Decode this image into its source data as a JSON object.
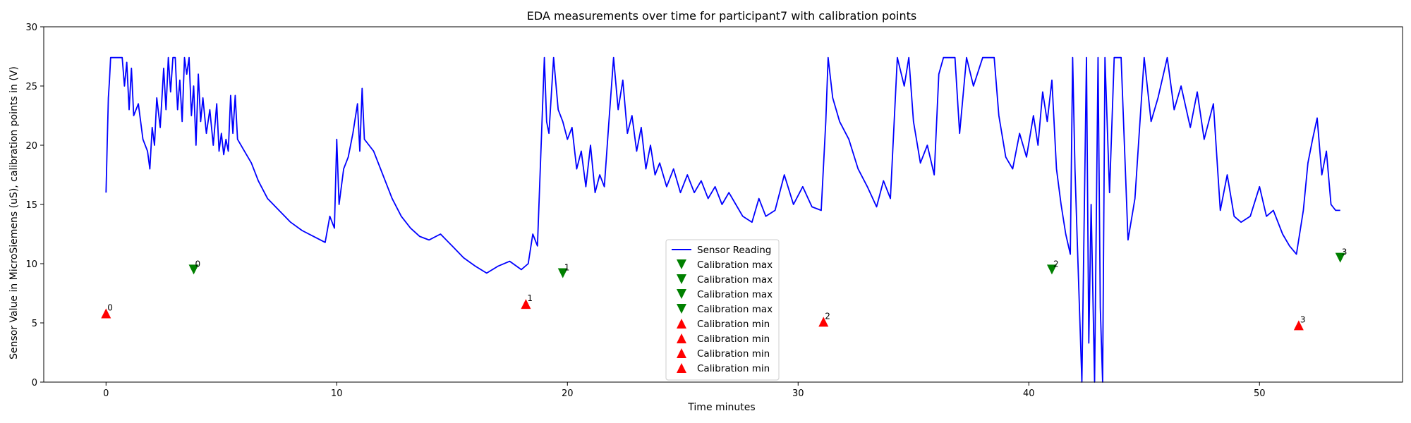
{
  "chart_data": {
    "type": "line",
    "title": "EDA measurements over time for participant7 with calibration points",
    "xlabel": "Time minutes",
    "ylabel": "Sensor Value in MicroSiemens (uS), calibration points in (V)",
    "xlim": [
      -2.7,
      56.2
    ],
    "ylim": [
      0,
      30
    ],
    "xticks": [
      0,
      10,
      20,
      30,
      40,
      50
    ],
    "yticks": [
      0,
      5,
      10,
      15,
      20,
      25,
      30
    ],
    "grid": false,
    "legend_position": "lower center",
    "series": [
      {
        "name": "Sensor Reading",
        "color": "#0000ff",
        "style": "line",
        "points": [
          [
            0,
            16.0
          ],
          [
            0.05,
            20.0
          ],
          [
            0.1,
            24.0
          ],
          [
            0.15,
            25.5
          ],
          [
            0.2,
            27.4
          ],
          [
            0.6,
            27.4
          ],
          [
            0.7,
            27.4
          ],
          [
            0.8,
            25.0
          ],
          [
            0.9,
            27.0
          ],
          [
            1.0,
            23.0
          ],
          [
            1.1,
            26.5
          ],
          [
            1.2,
            22.5
          ],
          [
            1.4,
            23.5
          ],
          [
            1.6,
            20.5
          ],
          [
            1.8,
            19.5
          ],
          [
            1.9,
            18.0
          ],
          [
            2.0,
            21.5
          ],
          [
            2.1,
            20.0
          ],
          [
            2.2,
            24.0
          ],
          [
            2.35,
            21.5
          ],
          [
            2.5,
            26.5
          ],
          [
            2.6,
            23.0
          ],
          [
            2.7,
            27.4
          ],
          [
            2.8,
            24.5
          ],
          [
            2.9,
            27.4
          ],
          [
            3.0,
            27.4
          ],
          [
            3.1,
            23.0
          ],
          [
            3.2,
            25.5
          ],
          [
            3.3,
            22.0
          ],
          [
            3.4,
            27.4
          ],
          [
            3.5,
            26.0
          ],
          [
            3.6,
            27.4
          ],
          [
            3.7,
            22.5
          ],
          [
            3.8,
            25.0
          ],
          [
            3.9,
            20.0
          ],
          [
            4.0,
            26.0
          ],
          [
            4.1,
            22.0
          ],
          [
            4.2,
            24.0
          ],
          [
            4.35,
            21.0
          ],
          [
            4.5,
            23.0
          ],
          [
            4.65,
            20.0
          ],
          [
            4.8,
            23.5
          ],
          [
            4.9,
            19.5
          ],
          [
            5.0,
            21.0
          ],
          [
            5.1,
            19.2
          ],
          [
            5.2,
            20.5
          ],
          [
            5.3,
            19.5
          ],
          [
            5.4,
            24.2
          ],
          [
            5.5,
            21.0
          ],
          [
            5.6,
            24.2
          ],
          [
            5.7,
            20.5
          ],
          [
            6.0,
            19.5
          ],
          [
            6.3,
            18.5
          ],
          [
            6.6,
            17.0
          ],
          [
            7.0,
            15.5
          ],
          [
            7.5,
            14.5
          ],
          [
            8.0,
            13.5
          ],
          [
            8.5,
            12.8
          ],
          [
            9.0,
            12.3
          ],
          [
            9.5,
            11.8
          ],
          [
            9.7,
            14.0
          ],
          [
            9.9,
            13.0
          ],
          [
            10.0,
            20.5
          ],
          [
            10.1,
            15.0
          ],
          [
            10.3,
            18.0
          ],
          [
            10.5,
            19.0
          ],
          [
            10.7,
            21.0
          ],
          [
            10.9,
            23.5
          ],
          [
            11.0,
            19.5
          ],
          [
            11.1,
            24.8
          ],
          [
            11.2,
            20.5
          ],
          [
            11.4,
            20.0
          ],
          [
            11.6,
            19.5
          ],
          [
            12.0,
            17.5
          ],
          [
            12.4,
            15.5
          ],
          [
            12.8,
            14.0
          ],
          [
            13.2,
            13.0
          ],
          [
            13.6,
            12.3
          ],
          [
            14.0,
            12.0
          ],
          [
            14.5,
            12.5
          ],
          [
            15.0,
            11.5
          ],
          [
            15.5,
            10.5
          ],
          [
            16.0,
            9.8
          ],
          [
            16.5,
            9.2
          ],
          [
            17.0,
            9.8
          ],
          [
            17.5,
            10.2
          ],
          [
            18.0,
            9.5
          ],
          [
            18.3,
            10.0
          ],
          [
            18.5,
            12.5
          ],
          [
            18.7,
            11.5
          ],
          [
            19.0,
            27.4
          ],
          [
            19.1,
            22.0
          ],
          [
            19.2,
            21.0
          ],
          [
            19.4,
            27.4
          ],
          [
            19.6,
            23.0
          ],
          [
            19.8,
            22.0
          ],
          [
            20.0,
            20.5
          ],
          [
            20.2,
            21.5
          ],
          [
            20.4,
            18.0
          ],
          [
            20.6,
            19.5
          ],
          [
            20.8,
            16.5
          ],
          [
            21.0,
            20.0
          ],
          [
            21.2,
            16.0
          ],
          [
            21.4,
            17.5
          ],
          [
            21.6,
            16.5
          ],
          [
            21.8,
            22.0
          ],
          [
            22.0,
            27.4
          ],
          [
            22.2,
            23.0
          ],
          [
            22.4,
            25.5
          ],
          [
            22.6,
            21.0
          ],
          [
            22.8,
            22.5
          ],
          [
            23.0,
            19.5
          ],
          [
            23.2,
            21.5
          ],
          [
            23.4,
            18.0
          ],
          [
            23.6,
            20.0
          ],
          [
            23.8,
            17.5
          ],
          [
            24.0,
            18.5
          ],
          [
            24.3,
            16.5
          ],
          [
            24.6,
            18.0
          ],
          [
            24.9,
            16.0
          ],
          [
            25.2,
            17.5
          ],
          [
            25.5,
            16.0
          ],
          [
            25.8,
            17.0
          ],
          [
            26.1,
            15.5
          ],
          [
            26.4,
            16.5
          ],
          [
            26.7,
            15.0
          ],
          [
            27.0,
            16.0
          ],
          [
            27.3,
            15.0
          ],
          [
            27.6,
            14.0
          ],
          [
            28.0,
            13.5
          ],
          [
            28.3,
            15.5
          ],
          [
            28.6,
            14.0
          ],
          [
            29.0,
            14.5
          ],
          [
            29.4,
            17.5
          ],
          [
            29.8,
            15.0
          ],
          [
            30.2,
            16.5
          ],
          [
            30.6,
            14.8
          ],
          [
            31.0,
            14.5
          ],
          [
            31.2,
            22.0
          ],
          [
            31.3,
            27.4
          ],
          [
            31.5,
            24.0
          ],
          [
            31.8,
            22.0
          ],
          [
            32.2,
            20.5
          ],
          [
            32.6,
            18.0
          ],
          [
            33.0,
            16.5
          ],
          [
            33.4,
            14.8
          ],
          [
            33.7,
            17.0
          ],
          [
            34.0,
            15.5
          ],
          [
            34.3,
            27.4
          ],
          [
            34.6,
            25.0
          ],
          [
            34.8,
            27.4
          ],
          [
            35.0,
            22.0
          ],
          [
            35.3,
            18.5
          ],
          [
            35.6,
            20.0
          ],
          [
            35.9,
            17.5
          ],
          [
            36.1,
            26.0
          ],
          [
            36.3,
            27.4
          ],
          [
            36.8,
            27.4
          ],
          [
            37.0,
            21.0
          ],
          [
            37.3,
            27.4
          ],
          [
            37.6,
            25.0
          ],
          [
            38.0,
            27.4
          ],
          [
            38.5,
            27.4
          ],
          [
            38.7,
            22.5
          ],
          [
            39.0,
            19.0
          ],
          [
            39.3,
            18.0
          ],
          [
            39.6,
            21.0
          ],
          [
            39.9,
            19.0
          ],
          [
            40.2,
            22.5
          ],
          [
            40.4,
            20.0
          ],
          [
            40.6,
            24.5
          ],
          [
            40.8,
            22.0
          ],
          [
            41.0,
            25.5
          ],
          [
            41.2,
            18.0
          ],
          [
            41.4,
            15.0
          ],
          [
            41.6,
            12.5
          ],
          [
            41.8,
            10.8
          ],
          [
            41.9,
            27.4
          ],
          [
            42.0,
            18.0
          ],
          [
            42.1,
            12.0
          ],
          [
            42.3,
            0
          ],
          [
            42.5,
            27.4
          ],
          [
            42.6,
            3.3
          ],
          [
            42.7,
            15.0
          ],
          [
            42.85,
            0
          ],
          [
            43.0,
            27.4
          ],
          [
            43.1,
            6.3
          ],
          [
            43.2,
            0
          ],
          [
            43.3,
            27.4
          ],
          [
            43.5,
            16.0
          ],
          [
            43.7,
            27.4
          ],
          [
            44.0,
            27.4
          ],
          [
            44.3,
            12.0
          ],
          [
            44.6,
            15.5
          ],
          [
            45.0,
            27.4
          ],
          [
            45.3,
            22.0
          ],
          [
            45.6,
            24.0
          ],
          [
            46.0,
            27.4
          ],
          [
            46.3,
            23.0
          ],
          [
            46.6,
            25.0
          ],
          [
            47.0,
            21.5
          ],
          [
            47.3,
            24.5
          ],
          [
            47.6,
            20.5
          ],
          [
            48.0,
            23.5
          ],
          [
            48.3,
            14.5
          ],
          [
            48.6,
            17.5
          ],
          [
            48.9,
            14.0
          ],
          [
            49.2,
            13.5
          ],
          [
            49.6,
            14.0
          ],
          [
            50.0,
            16.5
          ],
          [
            50.3,
            14.0
          ],
          [
            50.6,
            14.5
          ],
          [
            51.0,
            12.5
          ],
          [
            51.3,
            11.5
          ],
          [
            51.6,
            10.8
          ],
          [
            51.9,
            14.5
          ],
          [
            52.1,
            18.5
          ],
          [
            52.3,
            20.5
          ],
          [
            52.5,
            22.3
          ],
          [
            52.7,
            17.5
          ],
          [
            52.9,
            19.5
          ],
          [
            53.1,
            15.0
          ],
          [
            53.3,
            14.5
          ],
          [
            53.5,
            14.5
          ]
        ]
      }
    ],
    "calibration_max": {
      "name": "Calibration max",
      "color": "#008000",
      "marker": "triangle-down",
      "points": [
        {
          "x": 3.8,
          "y": 9.5,
          "label": "0"
        },
        {
          "x": 19.8,
          "y": 9.2,
          "label": "1"
        },
        {
          "x": 41.0,
          "y": 9.5,
          "label": "2"
        },
        {
          "x": 53.5,
          "y": 10.5,
          "label": "3"
        }
      ]
    },
    "calibration_min": {
      "name": "Calibration min",
      "color": "#ff0000",
      "marker": "triangle-up",
      "points": [
        {
          "x": 0.0,
          "y": 5.8,
          "label": "0"
        },
        {
          "x": 18.2,
          "y": 6.6,
          "label": "1"
        },
        {
          "x": 31.1,
          "y": 5.1,
          "label": "2"
        },
        {
          "x": 51.7,
          "y": 4.8,
          "label": "3"
        }
      ]
    },
    "legend": [
      {
        "label": "Sensor Reading",
        "kind": "line",
        "color": "#0000ff"
      },
      {
        "label": "Calibration max",
        "kind": "triangle-down",
        "color": "#008000"
      },
      {
        "label": "Calibration max",
        "kind": "triangle-down",
        "color": "#008000"
      },
      {
        "label": "Calibration max",
        "kind": "triangle-down",
        "color": "#008000"
      },
      {
        "label": "Calibration max",
        "kind": "triangle-down",
        "color": "#008000"
      },
      {
        "label": "Calibration min",
        "kind": "triangle-up",
        "color": "#ff0000"
      },
      {
        "label": "Calibration min",
        "kind": "triangle-up",
        "color": "#ff0000"
      },
      {
        "label": "Calibration min",
        "kind": "triangle-up",
        "color": "#ff0000"
      },
      {
        "label": "Calibration min",
        "kind": "triangle-up",
        "color": "#ff0000"
      }
    ]
  }
}
